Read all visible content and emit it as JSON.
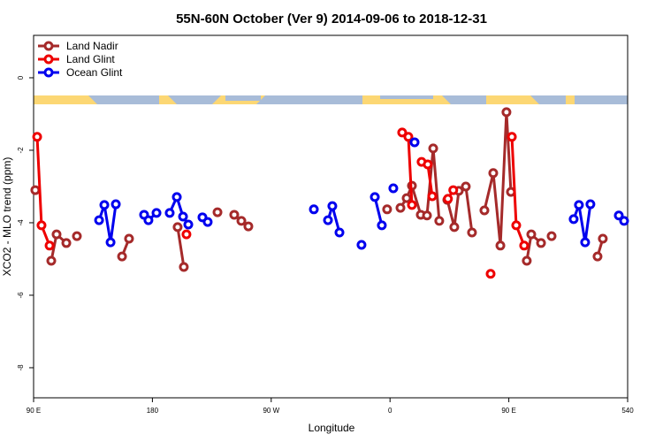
{
  "chart_data": {
    "type": "line",
    "title": "55N-60N October (Ver 9)   2014-09-06 to 2018-12-31",
    "x_label": "Longitude",
    "y_label": "XCO2 - MLO trend (ppm)",
    "xlim": [
      90,
      540
    ],
    "xticks": [
      {
        "value": 90,
        "label": "90 E"
      },
      180,
      {
        "value": 270,
        "label": "90 W"
      },
      {
        "value": 360,
        "label": "0"
      },
      {
        "value": 450,
        "label": "90 E"
      },
      540
    ],
    "ylim": [
      -8.83,
      1.17
    ],
    "yticks": [
      0,
      -2,
      -4,
      -6,
      -8
    ],
    "legend": "top-left",
    "grid": false,
    "series": [
      {
        "name": "Land Nadir",
        "color": "#a52a2a",
        "x": [
          91.3,
          null,
          103.4,
          107.4,
          114.8,
          null,
          122.8,
          null,
          157.0,
          162.3,
          null,
          199.1,
          203.8,
          null,
          229.3,
          null,
          242.0,
          247.4,
          252.7,
          null,
          357.8,
          null,
          367.9,
          372.6,
          376.6,
          383.3,
          388.0,
          392.7,
          397.3,
          null,
          403.4,
          408.7,
          412.1,
          417.4,
          422.1,
          null,
          431.5,
          438.2,
          443.6,
          448.2,
          451.6,
          null,
          463.6,
          467.0,
          474.4,
          null,
          482.4,
          null,
          517.2,
          521.2
        ],
        "values": [
          -3.1,
          null,
          -5.05,
          -4.32,
          -4.56,
          null,
          -4.37,
          null,
          -4.93,
          -4.44,
          null,
          -4.12,
          -5.22,
          null,
          -3.71,
          null,
          -3.78,
          -3.95,
          -4.1,
          null,
          -3.63,
          null,
          -3.59,
          -3.32,
          -2.98,
          -3.78,
          -3.8,
          -1.95,
          -3.95,
          null,
          -3.37,
          -4.12,
          -3.12,
          -3.0,
          -4.27,
          null,
          -3.66,
          -2.63,
          -4.63,
          -0.95,
          -3.15,
          null,
          -5.05,
          -4.32,
          -4.56,
          null,
          -4.37,
          null,
          -4.93,
          -4.44
        ]
      },
      {
        "name": "Land Glint",
        "color": "#ee0000",
        "x": [
          92.7,
          96.0,
          102.1,
          null,
          205.8,
          null,
          369.2,
          373.9,
          376.6,
          null,
          383.9,
          388.6,
          392.0,
          null,
          403.9,
          407.9,
          null,
          436.2,
          null,
          452.3,
          455.6,
          461.6
        ],
        "values": [
          -1.63,
          -4.07,
          -4.63,
          null,
          -4.32,
          null,
          -1.51,
          -1.63,
          -3.51,
          null,
          -2.32,
          -2.39,
          -3.27,
          null,
          -3.34,
          -3.1,
          null,
          -5.41,
          null,
          -1.63,
          -4.07,
          -4.63
        ]
      },
      {
        "name": "Ocean Glint",
        "color": "#0000ee",
        "x": [
          139.6,
          143.6,
          148.3,
          152.3,
          null,
          173.7,
          177.0,
          183.1,
          null,
          193.1,
          198.5,
          203.2,
          207.2,
          null,
          217.9,
          221.9,
          null,
          302.3,
          null,
          313.0,
          316.3,
          321.7,
          null,
          338.4,
          null,
          348.5,
          353.8,
          null,
          362.5,
          null,
          378.6,
          null,
          499.1,
          503.1,
          507.8,
          511.8,
          null,
          533.3,
          537.3
        ],
        "values": [
          -3.93,
          -3.51,
          -4.54,
          -3.49,
          null,
          -3.78,
          -3.93,
          -3.73,
          null,
          -3.73,
          -3.29,
          -3.83,
          -4.05,
          null,
          -3.85,
          -3.98,
          null,
          -3.63,
          null,
          -3.93,
          -3.54,
          -4.27,
          null,
          -4.61,
          null,
          -3.29,
          -4.07,
          null,
          -3.05,
          null,
          -1.78,
          null,
          -3.9,
          -3.51,
          -4.54,
          -3.49,
          null,
          -3.8,
          -3.95
        ]
      }
    ]
  }
}
